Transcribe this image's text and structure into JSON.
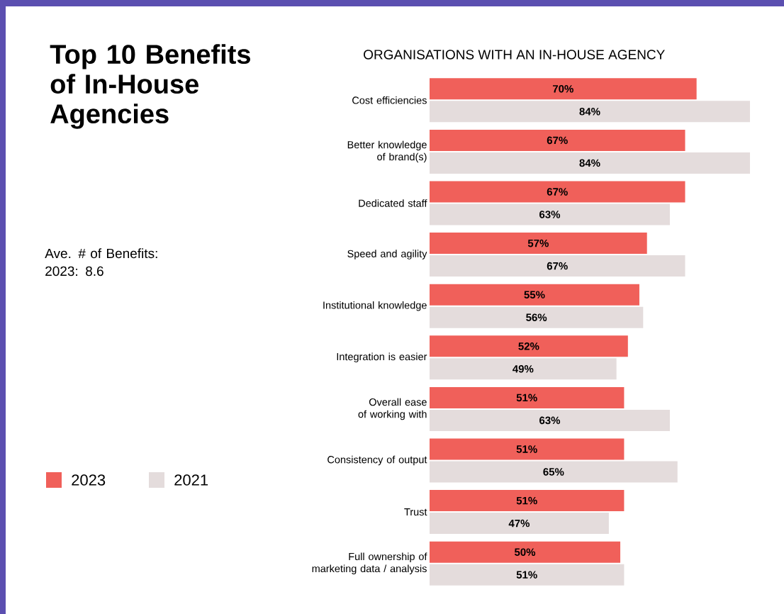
{
  "chart_data": {
    "type": "bar",
    "orientation": "horizontal",
    "title": "Top 10 Benefits of In-House Agencies",
    "subtitle": "ORGANISATIONS WITH AN IN-HOUSE AGENCY",
    "annotations": [
      "Ave. # of Benefits: 2023: 8.6"
    ],
    "categories": [
      "Cost efficiencies",
      "Better knowledge of brand(s)",
      "Dedicated staff",
      "Speed and agility",
      "Institutional knowledge",
      "Integration is easier",
      "Overall ease of working with",
      "Consistency of output",
      "Trust",
      "Full ownership of marketing data / analysis"
    ],
    "series": [
      {
        "name": "2023",
        "color": "#f0605a",
        "values": [
          70,
          67,
          67,
          57,
          55,
          52,
          51,
          51,
          51,
          50
        ],
        "value_labels": [
          "70%",
          "67%",
          "67%",
          "57%",
          "55%",
          "52%",
          "51%",
          "51%",
          "51%",
          "50%"
        ]
      },
      {
        "name": "2021",
        "color": "#e4dcdc",
        "values": [
          84,
          84,
          63,
          67,
          56,
          49,
          63,
          65,
          47,
          51
        ],
        "value_labels": [
          "84%",
          "84%",
          "63%",
          "67%",
          "56%",
          "49%",
          "63%",
          "65%",
          "47%",
          "51%"
        ]
      }
    ],
    "legend": "left"
  }
}
